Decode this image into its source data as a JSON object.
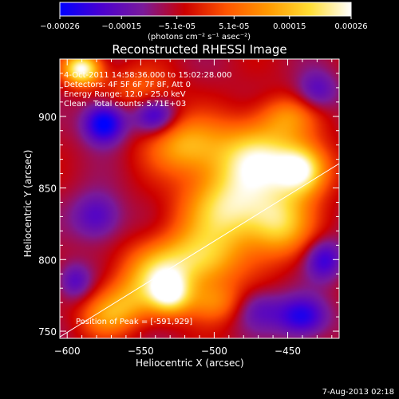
{
  "colorbar": {
    "tick_labels": [
      "-0.00026",
      "-0.00015",
      "-5.1e-05",
      "5.1e-05",
      "0.00015",
      "0.00026"
    ],
    "units": "(photons cm⁻² s⁻¹ asec⁻²)",
    "range": [
      -0.00026,
      0.00026
    ],
    "colormap": [
      "#0000ff",
      "#4b00d0",
      "#7a1a9a",
      "#cc0000",
      "#ff5500",
      "#ff9900",
      "#ffdd33",
      "#ffffff"
    ]
  },
  "chart_data": {
    "type": "heatmap",
    "title": "Reconstructed RHESSI Image",
    "xlabel": "Heliocentric X (arcsec)",
    "ylabel": "Heliocentric Y (arcsec)",
    "xlim": [
      -605,
      -415
    ],
    "ylim": [
      745,
      940
    ],
    "xticks": [
      -600,
      -550,
      -500,
      -450
    ],
    "yticks": [
      750,
      800,
      850,
      900
    ],
    "xtick_labels": [
      "−600",
      "−550",
      "−500",
      "−450"
    ],
    "ytick_labels": [
      "750",
      "800",
      "850",
      "900"
    ],
    "limb_line": {
      "x": [
        -605,
        -415
      ],
      "y": [
        746,
        867
      ]
    },
    "peak_position": [
      -591,
      929
    ],
    "annotations": {
      "time_range": "4-Oct-2011 14:58:36.000 to 15:02:28.000",
      "detectors": "Detectors: 4F 5F 6F 7F 8F, Att 0",
      "energy": "Energy Range: 12.0 - 25.0 keV",
      "method": "Clean",
      "counts": "Total counts: 5.71E+03",
      "peak": "Position of Peak = [-591,929]"
    },
    "blobs": [
      {
        "x": -590,
        "y": 933,
        "a": 1.0,
        "sx": 9,
        "sy": 8
      },
      {
        "x": -520,
        "y": 880,
        "a": 0.55,
        "sx": 18,
        "sy": 14
      },
      {
        "x": -470,
        "y": 870,
        "a": 0.85,
        "sx": 22,
        "sy": 18
      },
      {
        "x": -440,
        "y": 862,
        "a": 0.8,
        "sx": 12,
        "sy": 12
      },
      {
        "x": -490,
        "y": 835,
        "a": 0.75,
        "sx": 22,
        "sy": 18
      },
      {
        "x": -455,
        "y": 825,
        "a": 0.6,
        "sx": 15,
        "sy": 16
      },
      {
        "x": -510,
        "y": 800,
        "a": 0.65,
        "sx": 20,
        "sy": 15
      },
      {
        "x": -540,
        "y": 790,
        "a": 0.55,
        "sx": 16,
        "sy": 14
      },
      {
        "x": -530,
        "y": 775,
        "a": 0.7,
        "sx": 10,
        "sy": 10
      },
      {
        "x": -560,
        "y": 770,
        "a": 0.45,
        "sx": 14,
        "sy": 12
      },
      {
        "x": -575,
        "y": 760,
        "a": 0.35,
        "sx": 12,
        "sy": 10
      },
      {
        "x": -500,
        "y": 770,
        "a": 0.4,
        "sx": 14,
        "sy": 10
      },
      {
        "x": -550,
        "y": 920,
        "a": 0.3,
        "sx": 16,
        "sy": 10
      },
      {
        "x": -450,
        "y": 900,
        "a": 0.35,
        "sx": 14,
        "sy": 10
      },
      {
        "x": -575,
        "y": 895,
        "a": -0.7,
        "sx": 10,
        "sy": 10
      },
      {
        "x": -540,
        "y": 900,
        "a": -0.45,
        "sx": 10,
        "sy": 9
      },
      {
        "x": -440,
        "y": 760,
        "a": -0.55,
        "sx": 12,
        "sy": 10
      },
      {
        "x": -425,
        "y": 800,
        "a": -0.45,
        "sx": 9,
        "sy": 10
      },
      {
        "x": -580,
        "y": 830,
        "a": -0.4,
        "sx": 12,
        "sy": 12
      },
      {
        "x": -595,
        "y": 785,
        "a": -0.35,
        "sx": 8,
        "sy": 9
      },
      {
        "x": -470,
        "y": 765,
        "a": -0.3,
        "sx": 12,
        "sy": 10
      },
      {
        "x": -430,
        "y": 918,
        "a": -0.35,
        "sx": 10,
        "sy": 10
      }
    ],
    "grid": false,
    "legend": "none"
  },
  "footer": {
    "date_stamp": "7-Aug-2013 02:18"
  }
}
